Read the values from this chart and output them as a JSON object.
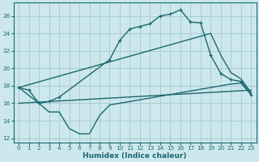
{
  "xlabel": "Humidex (Indice chaleur)",
  "bg_color": "#cce8ec",
  "grid_color": "#aacdd4",
  "line_color": "#1a6870",
  "xlim": [
    -0.5,
    23.5
  ],
  "ylim": [
    11.5,
    27.5
  ],
  "xticks": [
    0,
    1,
    2,
    3,
    4,
    5,
    6,
    7,
    8,
    9,
    10,
    11,
    12,
    13,
    14,
    15,
    16,
    17,
    18,
    19,
    20,
    21,
    22,
    23
  ],
  "yticks": [
    12,
    14,
    16,
    18,
    20,
    22,
    24,
    26
  ],
  "line1_x": [
    0,
    1,
    2,
    3,
    4,
    9,
    10,
    11,
    12,
    13,
    14,
    15,
    16,
    17,
    18,
    19,
    20,
    21,
    22,
    23
  ],
  "line1_y": [
    17.8,
    17.5,
    16.0,
    16.2,
    16.7,
    21.0,
    23.2,
    24.5,
    24.8,
    25.1,
    26.0,
    26.2,
    26.7,
    25.3,
    25.2,
    21.5,
    19.4,
    18.7,
    18.5,
    17.0
  ],
  "line2_x": [
    0,
    19,
    20,
    21,
    22,
    23
  ],
  "line2_y": [
    17.8,
    24.0,
    21.5,
    19.5,
    18.8,
    17.2
  ],
  "line3_x": [
    0,
    2,
    3,
    4,
    5,
    6,
    7,
    8,
    9,
    10,
    11,
    12,
    13,
    14,
    15,
    16,
    17,
    18,
    19,
    20,
    21,
    22,
    23
  ],
  "line3_y": [
    17.8,
    16.0,
    15.0,
    15.0,
    13.1,
    12.5,
    12.5,
    14.6,
    15.8,
    16.0,
    16.2,
    16.4,
    16.6,
    16.8,
    17.0,
    17.2,
    17.4,
    17.6,
    17.8,
    18.0,
    18.2,
    18.3,
    17.0
  ],
  "line4_x": [
    0,
    23
  ],
  "line4_y": [
    16.0,
    17.5
  ]
}
